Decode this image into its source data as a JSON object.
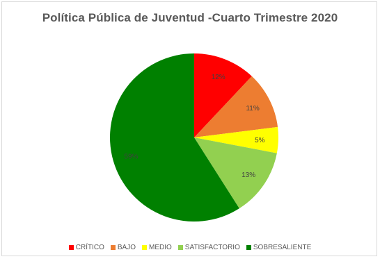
{
  "chart_data": {
    "type": "pie",
    "title": "Política Pública de Juventud -Cuarto Trimestre 2020",
    "categories": [
      "CRÍTICO",
      "BAJO",
      "MEDIO",
      "SATISFACTORIO",
      "SOBRESALIENTE"
    ],
    "values": [
      12,
      11,
      5,
      13,
      59
    ],
    "labels": [
      "12%",
      "11%",
      "5%",
      "13%",
      "59%"
    ],
    "colors": [
      "#ff0000",
      "#ed7d31",
      "#ffff00",
      "#92d050",
      "#008000"
    ],
    "legend_position": "bottom"
  }
}
